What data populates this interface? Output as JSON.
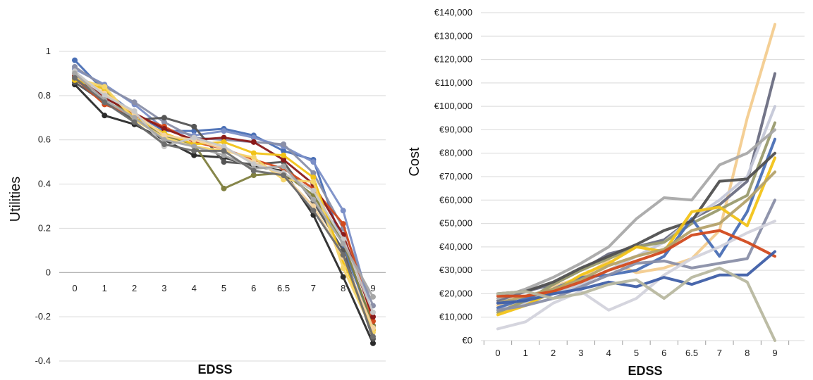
{
  "chart_data": [
    {
      "type": "line",
      "title": "",
      "xlabel": "EDSS",
      "ylabel": "Utilities",
      "categories": [
        "0",
        "1",
        "2",
        "3",
        "4",
        "5",
        "6",
        "6.5",
        "7",
        "8",
        "9"
      ],
      "ylim": [
        -0.4,
        1.0
      ],
      "yticks": [
        "1",
        "0.8",
        "0.6",
        "0.4",
        "0.2",
        "0",
        "-0.2",
        "-0.4"
      ],
      "ytick_values": [
        1,
        0.8,
        0.6,
        0.4,
        0.2,
        0,
        -0.2,
        -0.4
      ],
      "grid": true,
      "markers": true,
      "series": [
        {
          "color": "#4a6fb5",
          "values": [
            0.96,
            0.82,
            0.72,
            0.64,
            0.64,
            0.65,
            0.62,
            0.55,
            0.51,
            0.12,
            -0.24
          ]
        },
        {
          "color": "#7b8fc7",
          "values": [
            0.92,
            0.85,
            0.76,
            0.65,
            0.62,
            0.64,
            0.61,
            0.57,
            0.5,
            0.28,
            -0.2
          ]
        },
        {
          "color": "#8a8fa8",
          "values": [
            0.93,
            0.84,
            0.77,
            0.68,
            0.61,
            0.6,
            0.59,
            0.58,
            0.45,
            0.2,
            -0.15
          ]
        },
        {
          "color": "#2b2b2b",
          "values": [
            0.85,
            0.71,
            0.67,
            0.6,
            0.53,
            0.52,
            0.48,
            0.46,
            0.26,
            -0.02,
            -0.32
          ]
        },
        {
          "color": "#555555",
          "values": [
            0.86,
            0.77,
            0.69,
            0.7,
            0.66,
            0.5,
            0.49,
            0.5,
            0.32,
            0.1,
            -0.3
          ]
        },
        {
          "color": "#808040",
          "values": [
            0.87,
            0.8,
            0.7,
            0.62,
            0.58,
            0.38,
            0.44,
            0.45,
            0.35,
            0.14,
            -0.24
          ]
        },
        {
          "color": "#d24a1e",
          "values": [
            0.88,
            0.76,
            0.71,
            0.66,
            0.59,
            0.56,
            0.51,
            0.47,
            0.38,
            0.22,
            -0.22
          ]
        },
        {
          "color": "#8b1a1a",
          "values": [
            0.89,
            0.79,
            0.72,
            0.65,
            0.6,
            0.61,
            0.59,
            0.51,
            0.4,
            0.17,
            -0.2
          ]
        },
        {
          "color": "#f2c318",
          "values": [
            0.87,
            0.83,
            0.7,
            0.63,
            0.58,
            0.59,
            0.54,
            0.53,
            0.43,
            0.05,
            -0.26
          ]
        },
        {
          "color": "#f5d56a",
          "values": [
            0.88,
            0.84,
            0.69,
            0.61,
            0.57,
            0.55,
            0.52,
            0.42,
            0.41,
            0.02,
            -0.27
          ]
        },
        {
          "color": "#f3d3a0",
          "values": [
            0.9,
            0.81,
            0.72,
            0.62,
            0.6,
            0.56,
            0.5,
            0.44,
            0.3,
            0.07,
            -0.25
          ]
        },
        {
          "color": "#c8c8c8",
          "values": [
            0.91,
            0.8,
            0.73,
            0.57,
            0.61,
            0.57,
            0.49,
            0.45,
            0.37,
            0.15,
            -0.18
          ]
        },
        {
          "color": "#a6a6a6",
          "values": [
            0.9,
            0.78,
            0.7,
            0.6,
            0.57,
            0.53,
            0.47,
            0.48,
            0.33,
            0.13,
            -0.11
          ]
        },
        {
          "color": "#6d6d6d",
          "values": [
            0.88,
            0.77,
            0.68,
            0.58,
            0.55,
            0.55,
            0.46,
            0.44,
            0.28,
            0.08,
            -0.29
          ]
        }
      ]
    },
    {
      "type": "line",
      "title": "",
      "xlabel": "EDSS",
      "ylabel": "Cost",
      "categories": [
        "0",
        "1",
        "2",
        "3",
        "4",
        "5",
        "6",
        "6.5",
        "7",
        "8",
        "9"
      ],
      "ylim": [
        0,
        140000
      ],
      "yticks": [
        "€0",
        "€10,000",
        "€20,000",
        "€30,000",
        "€40,000",
        "€50,000",
        "€60,000",
        "€70,000",
        "€80,000",
        "€90,000",
        "€100,000",
        "€110,000",
        "€120,000",
        "€130,000",
        "€140,000"
      ],
      "ytick_values": [
        0,
        10000,
        20000,
        30000,
        40000,
        50000,
        60000,
        70000,
        80000,
        90000,
        100000,
        110000,
        120000,
        130000,
        140000
      ],
      "grid": true,
      "markers": false,
      "series": [
        {
          "color": "#f3cc8f",
          "values": [
            15000,
            16000,
            23000,
            27000,
            34000,
            29000,
            31000,
            35000,
            47000,
            95000,
            135000
          ]
        },
        {
          "color": "#6b6e82",
          "values": [
            17000,
            21000,
            24000,
            30000,
            37000,
            40000,
            43000,
            52000,
            58000,
            68000,
            114000
          ]
        },
        {
          "color": "#c5c8d8",
          "values": [
            13000,
            16000,
            20000,
            24000,
            30000,
            36000,
            42000,
            52000,
            60000,
            70000,
            100000
          ]
        },
        {
          "color": "#9a9b6e",
          "values": [
            12000,
            17000,
            24000,
            30000,
            35000,
            40000,
            42000,
            50000,
            56000,
            62000,
            93000
          ]
        },
        {
          "color": "#a9a9a9",
          "values": [
            18000,
            22000,
            27000,
            33000,
            40000,
            52000,
            61000,
            60000,
            75000,
            80000,
            90000
          ]
        },
        {
          "color": "#4a6fb5",
          "values": [
            14000,
            18000,
            22000,
            27000,
            28000,
            30000,
            36000,
            52000,
            36000,
            55000,
            86000
          ]
        },
        {
          "color": "#505050",
          "values": [
            20000,
            21000,
            25000,
            31000,
            36000,
            41000,
            47000,
            51000,
            68000,
            69000,
            80000
          ]
        },
        {
          "color": "#f2c318",
          "values": [
            11000,
            15000,
            21000,
            28000,
            33000,
            40000,
            38000,
            55000,
            57000,
            49000,
            78000
          ]
        },
        {
          "color": "#b4a26a",
          "values": [
            16000,
            19000,
            22000,
            26000,
            32000,
            36000,
            39000,
            47000,
            50000,
            60000,
            72000
          ]
        },
        {
          "color": "#8a8fa8",
          "values": [
            13000,
            15000,
            18000,
            23000,
            28000,
            33000,
            34000,
            31000,
            33000,
            35000,
            60000
          ]
        },
        {
          "color": "#d3d3dc",
          "values": [
            5000,
            8000,
            16000,
            21000,
            13000,
            18000,
            28000,
            35000,
            40000,
            46000,
            51000
          ]
        },
        {
          "color": "#d24a1e",
          "values": [
            19000,
            19000,
            21000,
            25000,
            30000,
            34000,
            38000,
            45000,
            47000,
            42000,
            36000
          ]
        },
        {
          "color": "#3f5fa8",
          "values": [
            16000,
            17000,
            20000,
            22000,
            25000,
            23000,
            27000,
            24000,
            28000,
            28000,
            38000
          ]
        },
        {
          "color": "#b8b8a0",
          "values": [
            20000,
            21000,
            18000,
            20000,
            24000,
            26000,
            18000,
            27000,
            31000,
            25000,
            0
          ]
        }
      ]
    }
  ]
}
